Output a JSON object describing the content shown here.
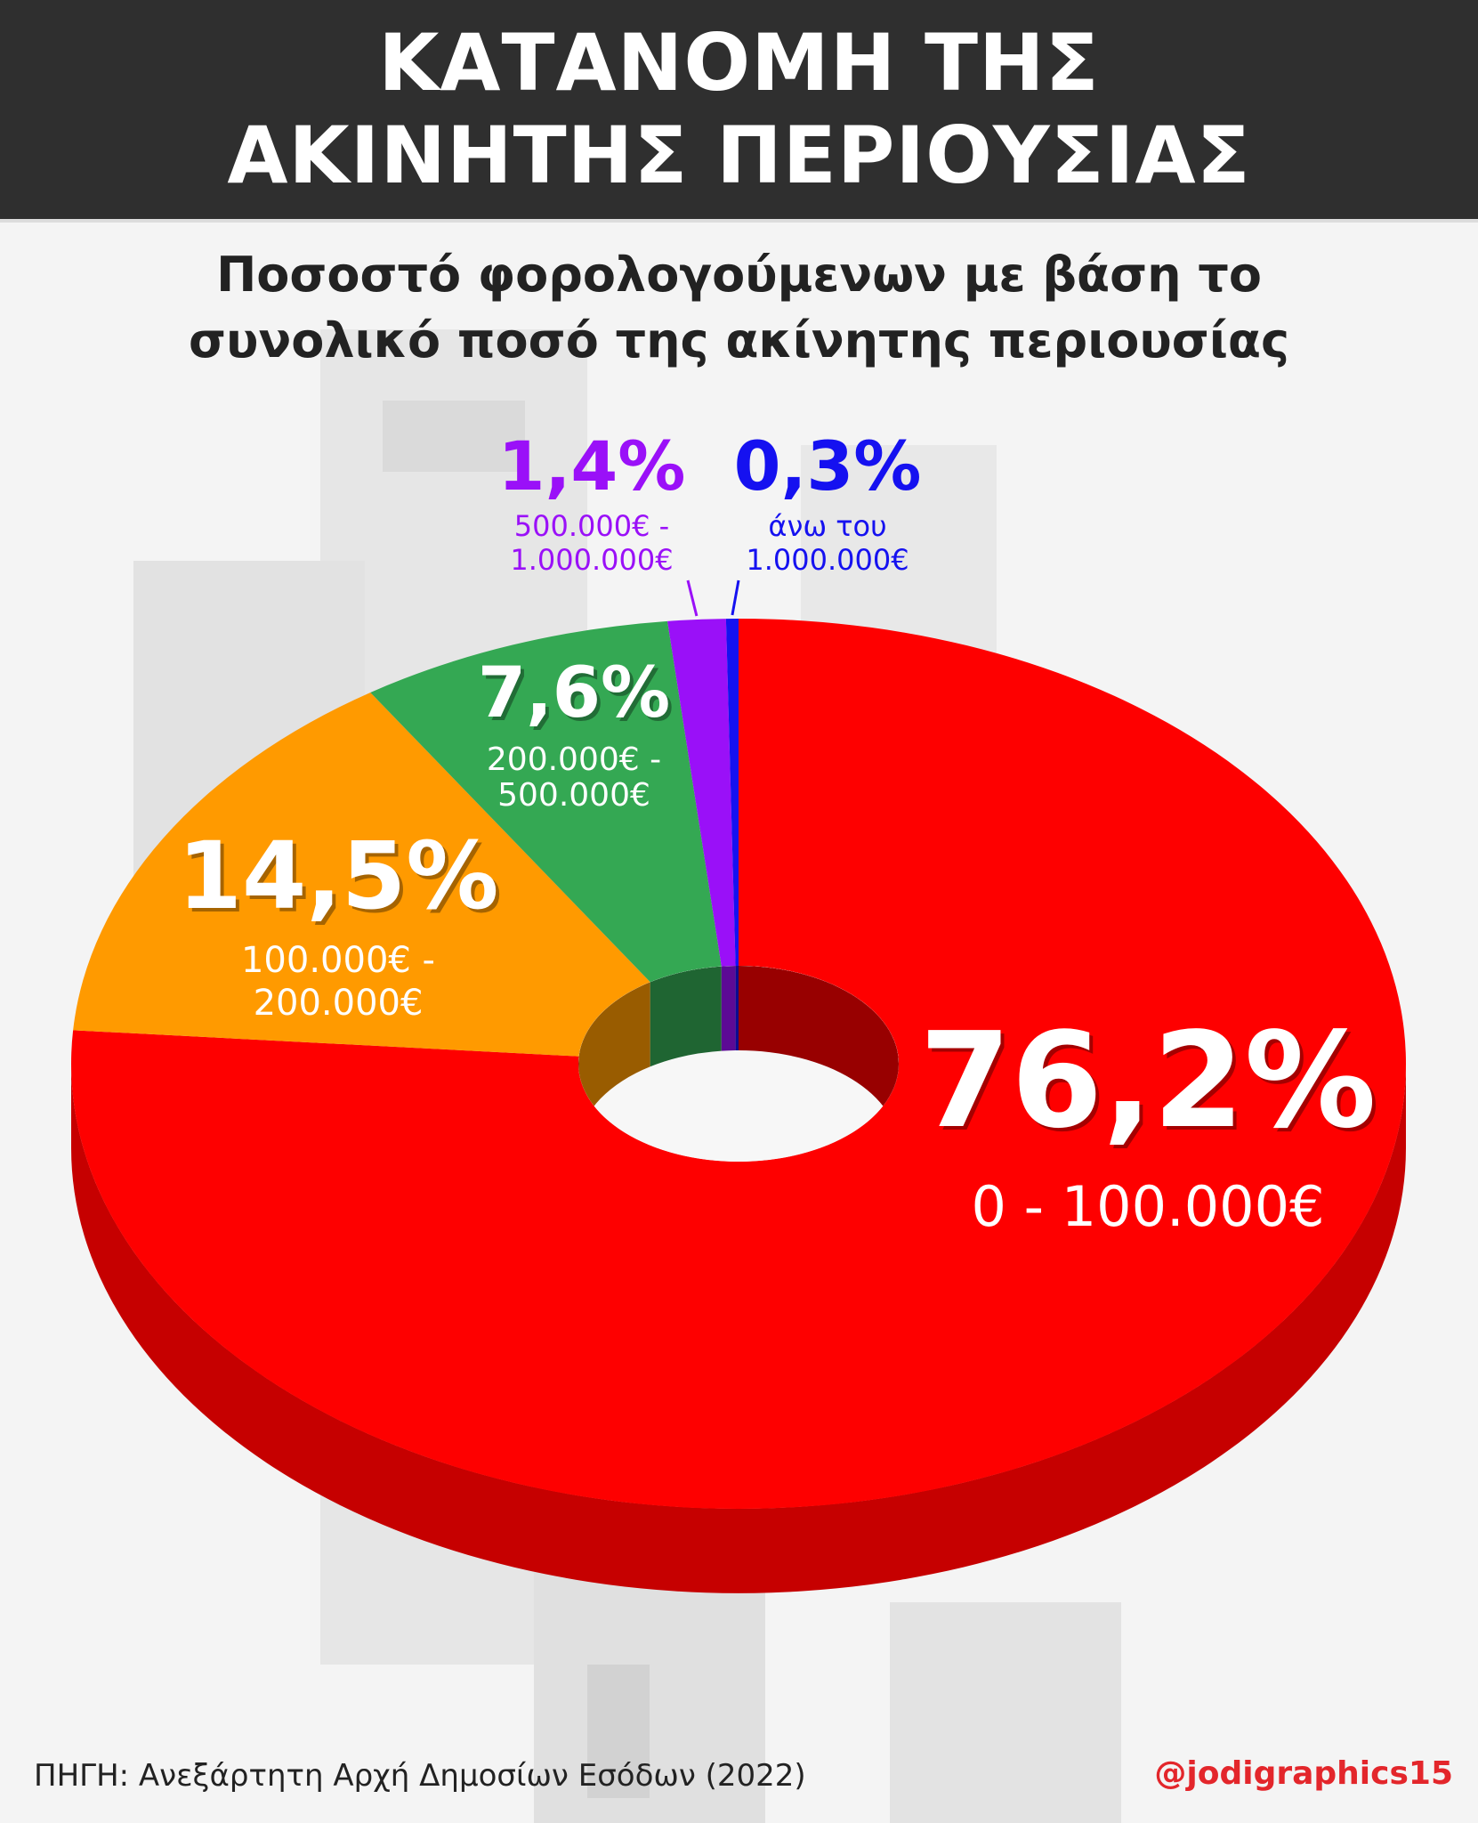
{
  "header": {
    "title_line1": "ΚΑΤΑΝΟΜΗ ΤΗΣ",
    "title_line2": "ΑΚΙΝΗΤΗΣ ΠΕΡΙΟΥΣΙΑΣ",
    "subtitle_line1": "Ποσοστό φορολογούμενων με βάση το",
    "subtitle_line2": "συνολικό ποσό της ακίνητης περιουσίας"
  },
  "chart_data": {
    "type": "pie",
    "style": "3d-donut",
    "categories": [
      "0 - 100.000€",
      "100.000€ - 200.000€",
      "200.000€ - 500.000€",
      "500.000€ - 1.000.000€",
      "άνω του 1.000.000€"
    ],
    "values": [
      76.2,
      14.5,
      7.6,
      1.4,
      0.3
    ],
    "value_labels": [
      "76,2%",
      "14,5%",
      "7,6%",
      "1,4%",
      "0,3%"
    ],
    "range_lines": [
      [
        "0 - 100.000€"
      ],
      [
        "100.000€ -",
        "200.000€"
      ],
      [
        "200.000€ -",
        "500.000€"
      ],
      [
        "500.000€ -",
        "1.000.000€"
      ],
      [
        "άνω του",
        "1.000.000€"
      ]
    ],
    "colors": [
      "#fe0000",
      "#ff9a00",
      "#34a853",
      "#9a10f8",
      "#1511f0"
    ]
  },
  "footer": {
    "source": "ΠΗΓΗ: Ανεξάρτητη Αρχή Δημοσίων Εσόδων (2022)",
    "handle": "@jodigraphics15"
  }
}
